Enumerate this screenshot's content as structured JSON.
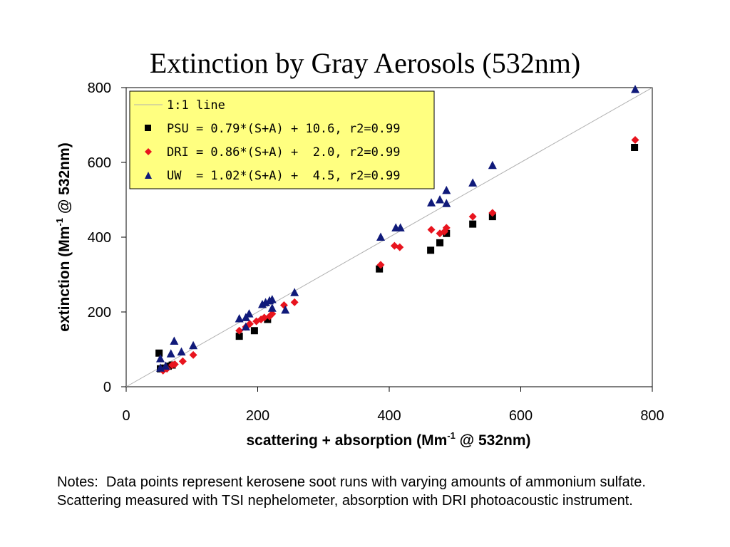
{
  "chart_data": {
    "type": "scatter",
    "title": "Extinction by Gray Aerosols (532nm)",
    "xlabel": {
      "pre": "scattering + absorption (Mm",
      "sup": "-1",
      "post": " @ 532nm)"
    },
    "ylabel": {
      "pre": "extinction (Mm",
      "sup": "-1",
      "post": " @ 532nm)"
    },
    "xlim": [
      0,
      800
    ],
    "ylim": [
      0,
      800
    ],
    "xticks": [
      "0",
      "200",
      "400",
      "600",
      "800"
    ],
    "yticks": [
      "0",
      "200",
      "400",
      "600",
      "800"
    ],
    "grid": false,
    "legend_position": "top-left",
    "reference_line": {
      "name": "1:1 line",
      "color": "#b0b0b0"
    },
    "series": [
      {
        "name": "PSU = 0.79*(S+A) + 10.6, r2=0.99",
        "marker": "square",
        "color": "#000000",
        "points": [
          [
            50,
            90
          ],
          [
            52,
            48
          ],
          [
            58,
            50
          ],
          [
            64,
            55
          ],
          [
            70,
            58
          ],
          [
            172,
            135
          ],
          [
            195,
            150
          ],
          [
            215,
            180
          ],
          [
            385,
            315
          ],
          [
            463,
            365
          ],
          [
            477,
            385
          ],
          [
            487,
            410
          ],
          [
            527,
            435
          ],
          [
            557,
            455
          ],
          [
            773,
            640
          ]
        ]
      },
      {
        "name": "DRI = 0.86*(S+A) +  2.0, r2=0.99",
        "marker": "diamond",
        "color": "#e8141e",
        "points": [
          [
            56,
            43
          ],
          [
            62,
            48
          ],
          [
            70,
            58
          ],
          [
            74,
            60
          ],
          [
            86,
            68
          ],
          [
            102,
            85
          ],
          [
            172,
            150
          ],
          [
            182,
            160
          ],
          [
            188,
            168
          ],
          [
            198,
            175
          ],
          [
            205,
            180
          ],
          [
            210,
            185
          ],
          [
            218,
            188
          ],
          [
            222,
            195
          ],
          [
            240,
            218
          ],
          [
            256,
            226
          ],
          [
            387,
            326
          ],
          [
            408,
            377
          ],
          [
            416,
            373
          ],
          [
            464,
            420
          ],
          [
            477,
            410
          ],
          [
            484,
            415
          ],
          [
            487,
            425
          ],
          [
            527,
            455
          ],
          [
            557,
            465
          ],
          [
            774,
            660
          ]
        ]
      },
      {
        "name": "UW  = 1.02*(S+A) +  4.5, r2=0.99",
        "marker": "triangle",
        "color": "#101a7a",
        "points": [
          [
            52,
            50
          ],
          [
            52,
            75
          ],
          [
            60,
            55
          ],
          [
            68,
            88
          ],
          [
            73,
            122
          ],
          [
            84,
            93
          ],
          [
            102,
            110
          ],
          [
            172,
            182
          ],
          [
            182,
            185
          ],
          [
            187,
            195
          ],
          [
            182,
            160
          ],
          [
            207,
            220
          ],
          [
            212,
            225
          ],
          [
            218,
            230
          ],
          [
            222,
            233
          ],
          [
            222,
            210
          ],
          [
            242,
            205
          ],
          [
            256,
            252
          ],
          [
            387,
            400
          ],
          [
            410,
            425
          ],
          [
            417,
            425
          ],
          [
            464,
            492
          ],
          [
            477,
            500
          ],
          [
            487,
            490
          ],
          [
            487,
            525
          ],
          [
            527,
            545
          ],
          [
            557,
            592
          ],
          [
            774,
            795
          ]
        ]
      }
    ]
  },
  "legend": {
    "line_label": "1:1 line",
    "entries": [
      "PSU = 0.79*(S+A) + 10.6, r2=0.99",
      "DRI = 0.86*(S+A) +  2.0, r2=0.99",
      "UW  = 1.02*(S+A) +  4.5, r2=0.99"
    ],
    "background": "#ffff80"
  },
  "notes": "Notes:  Data points represent kerosene soot runs with varying amounts of ammonium sulfate.  Scattering measured with TSI nephelometer, absorption with DRI photoacoustic instrument."
}
